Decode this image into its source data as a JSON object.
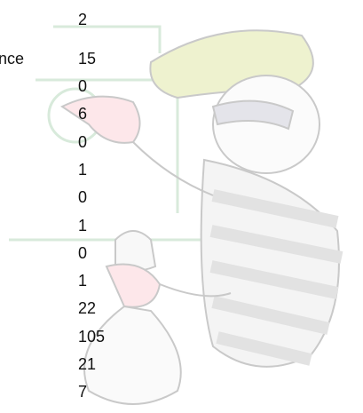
{
  "top_value": 2,
  "row": {
    "label": "nce",
    "value": 15
  },
  "values": [
    0,
    6,
    0,
    1,
    0,
    1,
    0,
    1,
    22,
    105,
    21,
    7
  ]
}
